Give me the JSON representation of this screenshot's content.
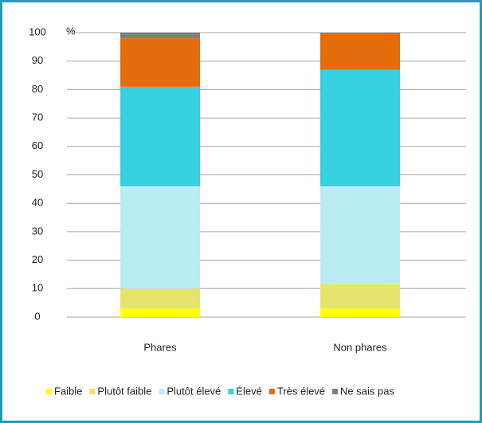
{
  "chart_data": {
    "type": "stacked_bar",
    "unit_label": "%",
    "categories": [
      "Phares",
      "Non phares"
    ],
    "series": [
      {
        "name": "Faible",
        "color": "#ffff00",
        "values": [
          3,
          3
        ]
      },
      {
        "name": "Plutôt faible",
        "color": "#e6e46c",
        "values": [
          7,
          8.5
        ]
      },
      {
        "name": "Plutôt élevé",
        "color": "#b9ecf3",
        "values": [
          36,
          34.5
        ]
      },
      {
        "name": "Élevé",
        "color": "#36d0e1",
        "values": [
          35,
          41
        ]
      },
      {
        "name": "Très élevé",
        "color": "#e46c0a",
        "values": [
          17,
          13
        ]
      },
      {
        "name": "Ne sais pas",
        "color": "#7f7f7f",
        "values": [
          2,
          0
        ]
      }
    ],
    "ylim": [
      0,
      100
    ],
    "yticks": [
      0,
      10,
      20,
      30,
      40,
      50,
      60,
      70,
      80,
      90,
      100
    ],
    "grid": true
  }
}
